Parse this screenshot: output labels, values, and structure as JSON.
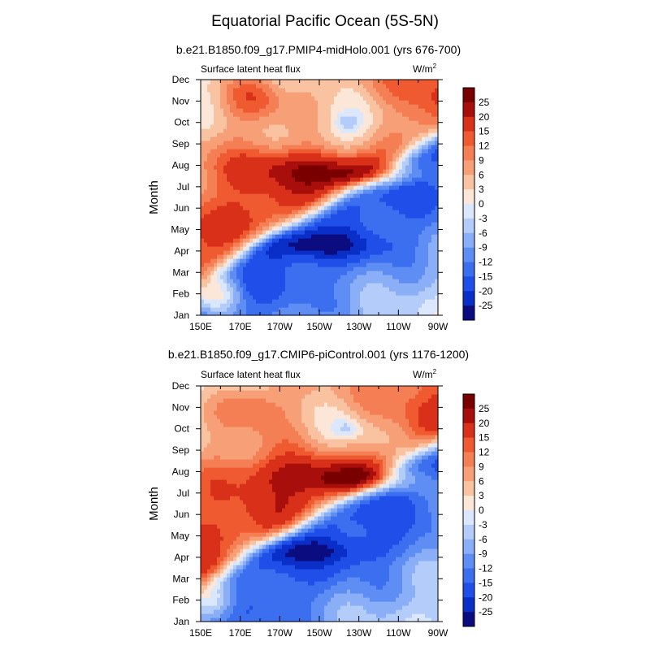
{
  "figure": {
    "title": "Equatorial Pacific Ocean (5S-5N)"
  },
  "chart_data": [
    {
      "type": "heatmap",
      "subtitle": "b.e21.B1850.f09_g17.PMIP4-midHolo.001 (yrs 676-700)",
      "left_label": "Surface latent heat flux",
      "right_label": "W/m",
      "right_label_sup": "2",
      "ylabel": "Month",
      "xlabel": "",
      "x_ticks": [
        "150E",
        "170E",
        "170W",
        "150W",
        "130W",
        "110W",
        "90W"
      ],
      "y_ticks": [
        "Jan",
        "Feb",
        "Mar",
        "Apr",
        "May",
        "Jun",
        "Jul",
        "Aug",
        "Sep",
        "Oct",
        "Nov",
        "Dec"
      ],
      "x_range": [
        "150E",
        "90W"
      ],
      "y_range": [
        "Jan",
        "Dec"
      ],
      "colorbar_labels": [
        "25",
        "20",
        "15",
        "12",
        "9",
        "6",
        "3",
        "0",
        "-3",
        "-6",
        "-9",
        "-12",
        "-15",
        "-20",
        "-25"
      ],
      "features": [
        {
          "name": "warm-anomaly-east",
          "lon": [
            -150,
            -95
          ],
          "month": [
            6.5,
            8.0
          ],
          "peak": 25
        },
        {
          "name": "cool-anomaly-spring",
          "lon": [
            -175,
            -105
          ],
          "month": [
            3.0,
            4.5
          ],
          "peak": -25
        },
        {
          "name": "cool-patch-autumn",
          "lon": [
            -140,
            -125
          ],
          "month": [
            9.5,
            10.5
          ],
          "peak": -9
        }
      ]
    },
    {
      "type": "heatmap",
      "subtitle": "b.e21.B1850.f09_g17.CMIP6-piControl.001 (yrs 1176-1200)",
      "left_label": "Surface latent heat flux",
      "right_label": "W/m",
      "right_label_sup": "2",
      "ylabel": "Month",
      "xlabel": "",
      "x_ticks": [
        "150E",
        "170E",
        "170W",
        "150W",
        "130W",
        "110W",
        "90W"
      ],
      "y_ticks": [
        "Jan",
        "Feb",
        "Mar",
        "Apr",
        "May",
        "Jun",
        "Jul",
        "Aug",
        "Sep",
        "Oct",
        "Nov",
        "Dec"
      ],
      "x_range": [
        "150E",
        "90W"
      ],
      "y_range": [
        "Jan",
        "Dec"
      ],
      "colorbar_labels": [
        "25",
        "20",
        "15",
        "12",
        "9",
        "6",
        "3",
        "0",
        "-3",
        "-6",
        "-9",
        "-12",
        "-15",
        "-20",
        "-25"
      ],
      "features": [
        {
          "name": "warm-anomaly-east",
          "lon": [
            -140,
            -95
          ],
          "month": [
            6.5,
            7.5
          ],
          "peak": 25
        },
        {
          "name": "cool-anomaly-spring",
          "lon": [
            -175,
            -100
          ],
          "month": [
            3.0,
            4.5
          ],
          "peak": -20
        },
        {
          "name": "cool-patch-autumn",
          "lon": [
            -140,
            -125
          ],
          "month": [
            9.5,
            10.5
          ],
          "peak": -6
        }
      ]
    }
  ],
  "colors": {
    "palette": [
      "#0b0c80",
      "#0a2fc8",
      "#1f4fe8",
      "#3c6ef0",
      "#5e8ef4",
      "#8aaff7",
      "#b3ccfa",
      "#dbe7fc",
      "#fce6d8",
      "#f9c3a2",
      "#f7a078",
      "#f57f55",
      "#f05a30",
      "#d9301a",
      "#a80e0b",
      "#7a0000"
    ]
  }
}
